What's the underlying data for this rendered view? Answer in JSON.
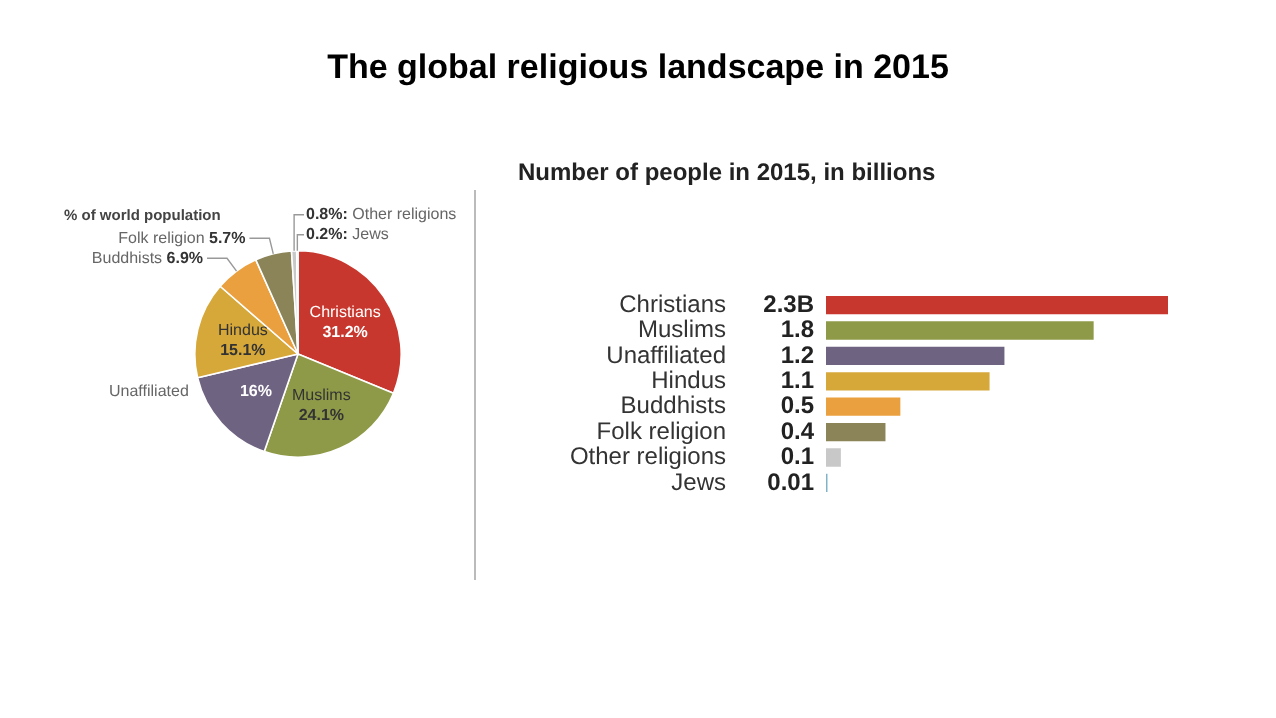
{
  "chart_data": [
    {
      "type": "pie",
      "title": "The global religious landscape in 2015",
      "subtitle": "% of world population",
      "categories": [
        "Christians",
        "Muslims",
        "Unaffiliated",
        "Hindus",
        "Buddhists",
        "Folk religion",
        "Other religions",
        "Jews"
      ],
      "values": [
        31.2,
        24.1,
        16,
        15.1,
        6.9,
        5.7,
        0.8,
        0.2
      ],
      "colors": [
        "#c8372d",
        "#8f9a48",
        "#6f6382",
        "#d6a83a",
        "#eba03f",
        "#8a8458",
        "#c8c8c8",
        "#7fb3c8"
      ],
      "value_labels": [
        "31.2%",
        "24.1%",
        "16%",
        "15.1%",
        "6.9%",
        "5.7%",
        "0.8%:",
        "0.2%:"
      ]
    },
    {
      "type": "bar",
      "orientation": "horizontal",
      "title": "Number of people in 2015, in billions",
      "categories": [
        "Christians",
        "Muslims",
        "Unaffiliated",
        "Hindus",
        "Buddhists",
        "Folk religion",
        "Other religions",
        "Jews"
      ],
      "values": [
        2.3,
        1.8,
        1.2,
        1.1,
        0.5,
        0.4,
        0.1,
        0.01
      ],
      "colors": [
        "#c8372d",
        "#8f9a48",
        "#6f6382",
        "#d6a83a",
        "#eba03f",
        "#8a8458",
        "#c8c8c8",
        "#7fb3c8"
      ],
      "value_labels": [
        "2.3B",
        "1.8",
        "1.2",
        "1.1",
        "0.5",
        "0.4",
        "0.1",
        "0.01"
      ]
    }
  ]
}
